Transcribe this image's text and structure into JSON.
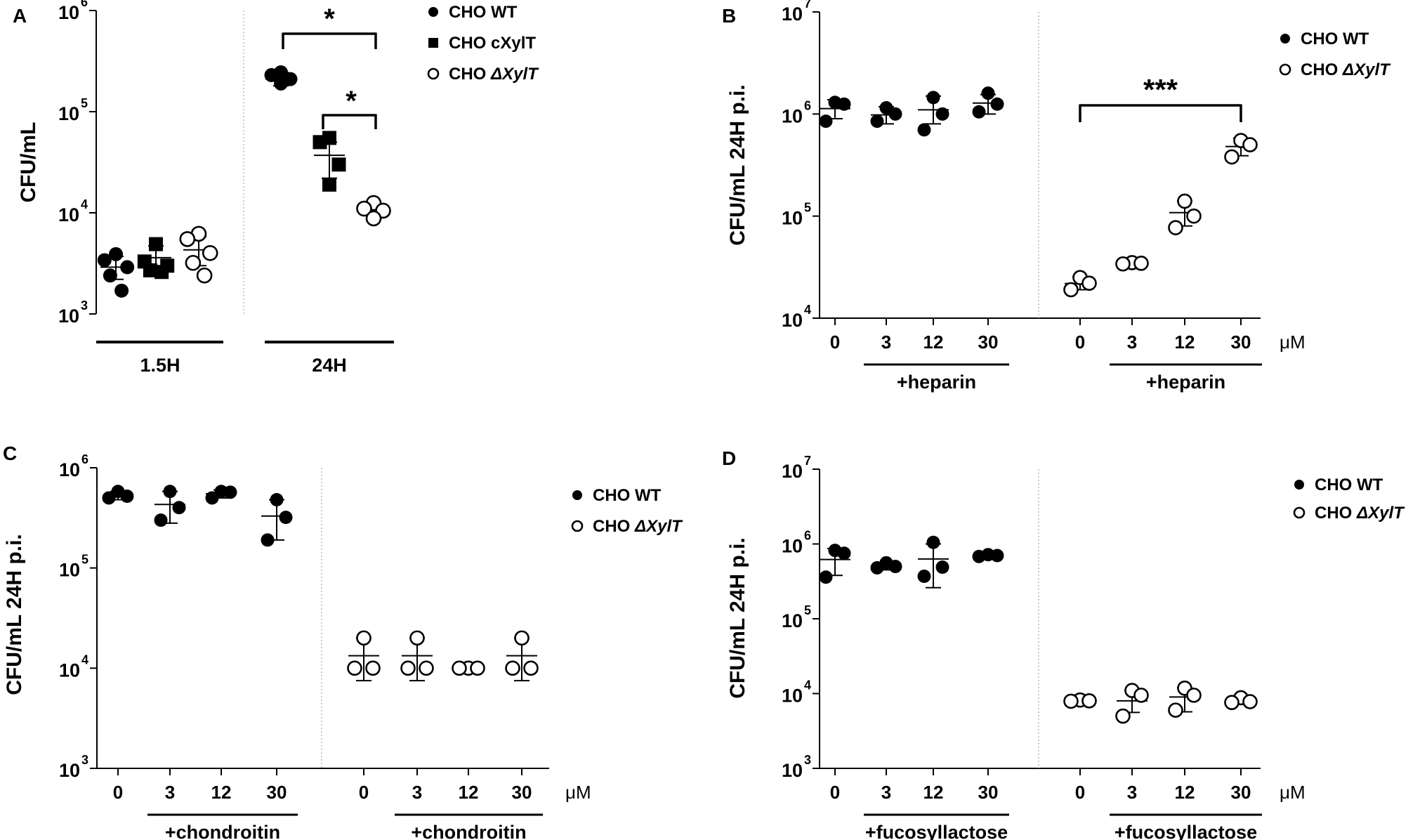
{
  "figure": {
    "mu_unit": "μM",
    "y_ticks": [
      "10",
      "10",
      "10",
      "10",
      "10"
    ]
  },
  "chart_data": [
    {
      "panel": "A",
      "type": "scatter",
      "ylabel": "CFU/mL",
      "yscale": "log",
      "ylim": [
        1000,
        1000000
      ],
      "tick_exponents": [
        3,
        4,
        5,
        6
      ],
      "legend": [
        {
          "name": "CHO WT",
          "marker": "filled-circle"
        },
        {
          "name": "CHO cXylT",
          "marker": "filled-square"
        },
        {
          "name": "CHO ",
          "name_italic": "ΔXylT",
          "marker": "open-circle"
        }
      ],
      "groups": [
        {
          "label": "1.5H",
          "series": [
            {
              "series": "CHO WT",
              "points": [
                3900,
                3400,
                2900,
                2400,
                1700
              ],
              "mean": 2900,
              "sd_low": 2200,
              "sd_high": 3700
            },
            {
              "series": "CHO cXylT",
              "points": [
                4900,
                3300,
                3000,
                2700,
                2600
              ],
              "mean": 3600,
              "sd_low": 2800,
              "sd_high": 4700
            },
            {
              "series": "CHO ΔXylT",
              "points": [
                6200,
                5500,
                4000,
                3200,
                2400
              ],
              "mean": 4300,
              "sd_low": 3000,
              "sd_high": 5800
            }
          ]
        },
        {
          "label": "24H",
          "series": [
            {
              "series": "CHO WT",
              "points": [
                245000,
                230000,
                210000,
                190000
              ],
              "mean": 210000,
              "sd_low": 180000,
              "sd_high": 245000
            },
            {
              "series": "CHO cXylT",
              "points": [
                55000,
                50000,
                30000,
                19000
              ],
              "mean": 37000,
              "sd_low": 22000,
              "sd_high": 50000
            },
            {
              "series": "CHO ΔXylT",
              "points": [
                12500,
                11000,
                10500,
                8800
              ],
              "mean": 10500,
              "sd_low": 9200,
              "sd_high": 11800
            }
          ]
        }
      ],
      "annotations": [
        {
          "text": "*",
          "from": "24H / CHO WT",
          "to": "24H / CHO ΔXylT"
        },
        {
          "text": "*",
          "from": "24H / CHO cXylT",
          "to": "24H / CHO ΔXylT"
        }
      ]
    },
    {
      "panel": "B",
      "type": "scatter",
      "ylabel": "CFU/mL 24H p.i.",
      "yscale": "log",
      "ylim": [
        10000,
        10000000
      ],
      "tick_exponents": [
        4,
        5,
        6,
        7
      ],
      "x_unit": "μM",
      "treatment": "+heparin",
      "legend": [
        {
          "name": "CHO WT",
          "marker": "filled-circle"
        },
        {
          "name": "CHO ",
          "name_italic": "ΔXylT",
          "marker": "open-circle"
        }
      ],
      "groups": [
        {
          "series": "CHO WT",
          "doses": [
            "0",
            "3",
            "12",
            "30"
          ],
          "points": [
            [
              1300000,
              1250000,
              850000
            ],
            [
              1150000,
              1000000,
              850000
            ],
            [
              1450000,
              1000000,
              700000
            ],
            [
              1600000,
              1250000,
              1050000
            ]
          ],
          "means": [
            1130000,
            980000,
            1100000,
            1280000
          ],
          "sd_low": [
            900000,
            800000,
            800000,
            1000000
          ],
          "sd_high": [
            1380000,
            1180000,
            1500000,
            1550000
          ]
        },
        {
          "series": "CHO ΔXylT",
          "doses": [
            "0",
            "3",
            "12",
            "30"
          ],
          "points": [
            [
              25000,
              22000,
              19000
            ],
            [
              35000,
              34500,
              34000
            ],
            [
              140000,
              100000,
              77000
            ],
            [
              550000,
              500000,
              380000
            ]
          ],
          "means": [
            21800,
            34500,
            108000,
            480000
          ],
          "sd_low": [
            19000,
            33500,
            80000,
            390000
          ],
          "sd_high": [
            25500,
            35500,
            140000,
            580000
          ]
        }
      ],
      "annotations": [
        {
          "text": "***",
          "from": "CHO ΔXylT 0",
          "to": "CHO ΔXylT 30"
        }
      ]
    },
    {
      "panel": "C",
      "type": "scatter",
      "ylabel": "CFU/mL 24H p.i.",
      "yscale": "log",
      "ylim": [
        1000,
        1000000
      ],
      "tick_exponents": [
        3,
        4,
        5,
        6
      ],
      "x_unit": "μM",
      "treatment": "+chondroitin",
      "legend": [
        {
          "name": "CHO WT",
          "marker": "filled-circle"
        },
        {
          "name": "CHO ",
          "name_italic": "ΔXylT",
          "marker": "open-circle"
        }
      ],
      "groups": [
        {
          "series": "CHO WT",
          "doses": [
            "0",
            "3",
            "12",
            "30"
          ],
          "points": [
            [
              580000,
              520000,
              500000
            ],
            [
              580000,
              400000,
              300000
            ],
            [
              580000,
              570000,
              500000
            ],
            [
              480000,
              320000,
              190000
            ]
          ],
          "means": [
            530000,
            430000,
            550000,
            330000
          ],
          "sd_low": [
            480000,
            280000,
            500000,
            190000
          ],
          "sd_high": [
            580000,
            580000,
            600000,
            480000
          ]
        },
        {
          "series": "CHO ΔXylT",
          "doses": [
            "0",
            "3",
            "12",
            "30"
          ],
          "points": [
            [
              20000,
              10000,
              10000
            ],
            [
              20000,
              10000,
              10000
            ],
            [
              10000,
              10000,
              10000
            ],
            [
              20000,
              10000,
              10000
            ]
          ],
          "means": [
            13300,
            13300,
            10000,
            13300
          ],
          "sd_low": [
            7500,
            7500,
            10000,
            7500
          ],
          "sd_high": [
            20000,
            20000,
            10000,
            20000
          ]
        }
      ]
    },
    {
      "panel": "D",
      "type": "scatter",
      "ylabel": "CFU/mL 24H p.i.",
      "yscale": "log",
      "ylim": [
        1000,
        10000000
      ],
      "tick_exponents": [
        3,
        4,
        5,
        6,
        7
      ],
      "x_unit": "μM",
      "treatment": "+fucosyllactose",
      "legend": [
        {
          "name": "CHO WT",
          "marker": "filled-circle"
        },
        {
          "name": "CHO ",
          "name_italic": "ΔXylT",
          "marker": "open-circle"
        }
      ],
      "groups": [
        {
          "series": "CHO WT",
          "doses": [
            "0",
            "3",
            "12",
            "30"
          ],
          "points": [
            [
              820000,
              750000,
              360000
            ],
            [
              560000,
              500000,
              480000
            ],
            [
              1050000,
              490000,
              370000
            ],
            [
              720000,
              700000,
              680000
            ]
          ],
          "means": [
            620000,
            500000,
            630000,
            700000
          ],
          "sd_low": [
            380000,
            450000,
            260000,
            660000
          ],
          "sd_high": [
            870000,
            560000,
            1000000,
            760000
          ]
        },
        {
          "series": "CHO ΔXylT",
          "doses": [
            "0",
            "3",
            "12",
            "30"
          ],
          "points": [
            [
              8200,
              8000,
              7900
            ],
            [
              11000,
              9500,
              5000
            ],
            [
              11800,
              9500,
              6000
            ],
            [
              8800,
              7800,
              7600
            ]
          ],
          "means": [
            8000,
            8000,
            9000,
            8000
          ],
          "sd_low": [
            7700,
            5600,
            5700,
            7600
          ],
          "sd_high": [
            8300,
            11200,
            12000,
            8500
          ]
        }
      ]
    }
  ]
}
